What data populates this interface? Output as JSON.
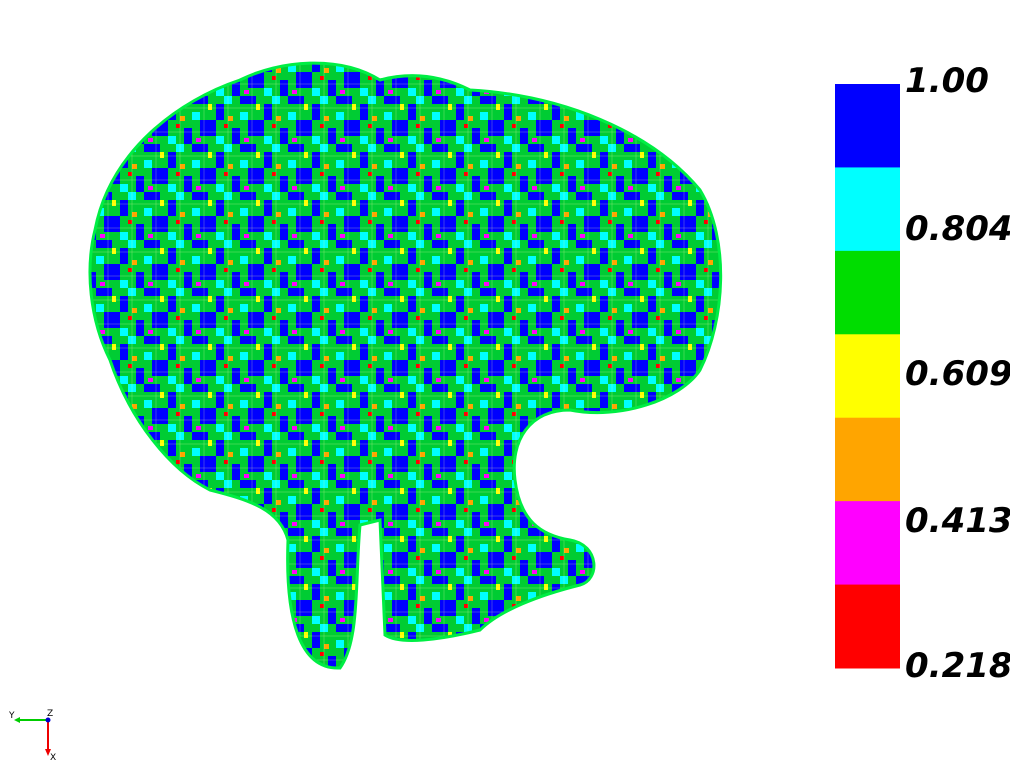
{
  "legend": {
    "labels": [
      "1.00",
      "0.804",
      "0.609",
      "0.413",
      "0.218"
    ],
    "colors": [
      "#0000ff",
      "#00ffff",
      "#00dd00",
      "#ffff00",
      "#ffa500",
      "#ff00ff",
      "#ff0000"
    ]
  },
  "triad": {
    "y_label": "Y",
    "z_label": "Z",
    "x_label": "X"
  }
}
